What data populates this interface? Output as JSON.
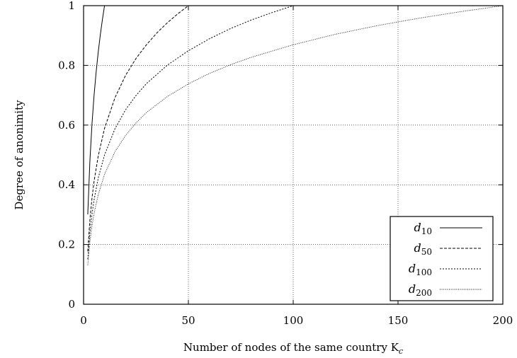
{
  "chart_data": {
    "type": "line",
    "xlabel": "Number of nodes of the same country K",
    "xlabel_subscript": "c",
    "ylabel": "Degree of anonimity",
    "xlim": [
      0,
      200
    ],
    "ylim": [
      0,
      1
    ],
    "x_ticks": [
      "0",
      "50",
      "100",
      "150",
      "200"
    ],
    "y_ticks": [
      "0",
      "0.2",
      "0.4",
      "0.6",
      "0.8",
      "1"
    ],
    "x_tick_values": [
      0,
      50,
      100,
      150,
      200
    ],
    "y_tick_values": [
      0,
      0.2,
      0.4,
      0.6,
      0.8,
      1
    ],
    "grid": true,
    "legend_position": "bottom-right",
    "series": [
      {
        "name": "d",
        "subscript": "10",
        "style": "solid",
        "x": [
          2,
          3,
          4,
          5,
          6,
          7,
          8,
          9,
          10
        ],
        "y": [
          0.301,
          0.477,
          0.602,
          0.699,
          0.778,
          0.845,
          0.903,
          0.954,
          1.0
        ]
      },
      {
        "name": "d",
        "subscript": "50",
        "style": "dashed",
        "x": [
          2,
          3,
          4,
          5,
          7,
          10,
          15,
          20,
          25,
          30,
          35,
          40,
          45,
          50
        ],
        "y": [
          0.177,
          0.281,
          0.354,
          0.411,
          0.497,
          0.589,
          0.692,
          0.766,
          0.823,
          0.869,
          0.909,
          0.943,
          0.973,
          1.0
        ]
      },
      {
        "name": "d",
        "subscript": "100",
        "style": "dotted",
        "x": [
          2,
          3,
          4,
          5,
          7,
          10,
          15,
          20,
          25,
          30,
          40,
          50,
          60,
          70,
          80,
          90,
          100
        ],
        "y": [
          0.151,
          0.239,
          0.301,
          0.349,
          0.423,
          0.5,
          0.588,
          0.651,
          0.699,
          0.739,
          0.801,
          0.849,
          0.889,
          0.923,
          0.952,
          0.977,
          1.0
        ]
      },
      {
        "name": "d",
        "subscript": "200",
        "style": "fine-dotted",
        "x": [
          2,
          3,
          4,
          5,
          7,
          10,
          15,
          20,
          25,
          30,
          40,
          50,
          60,
          70,
          80,
          100,
          120,
          140,
          160,
          180,
          200
        ],
        "y": [
          0.131,
          0.207,
          0.262,
          0.304,
          0.367,
          0.435,
          0.511,
          0.565,
          0.607,
          0.642,
          0.696,
          0.738,
          0.773,
          0.802,
          0.827,
          0.869,
          0.904,
          0.933,
          0.958,
          0.98,
          1.0
        ]
      }
    ]
  }
}
